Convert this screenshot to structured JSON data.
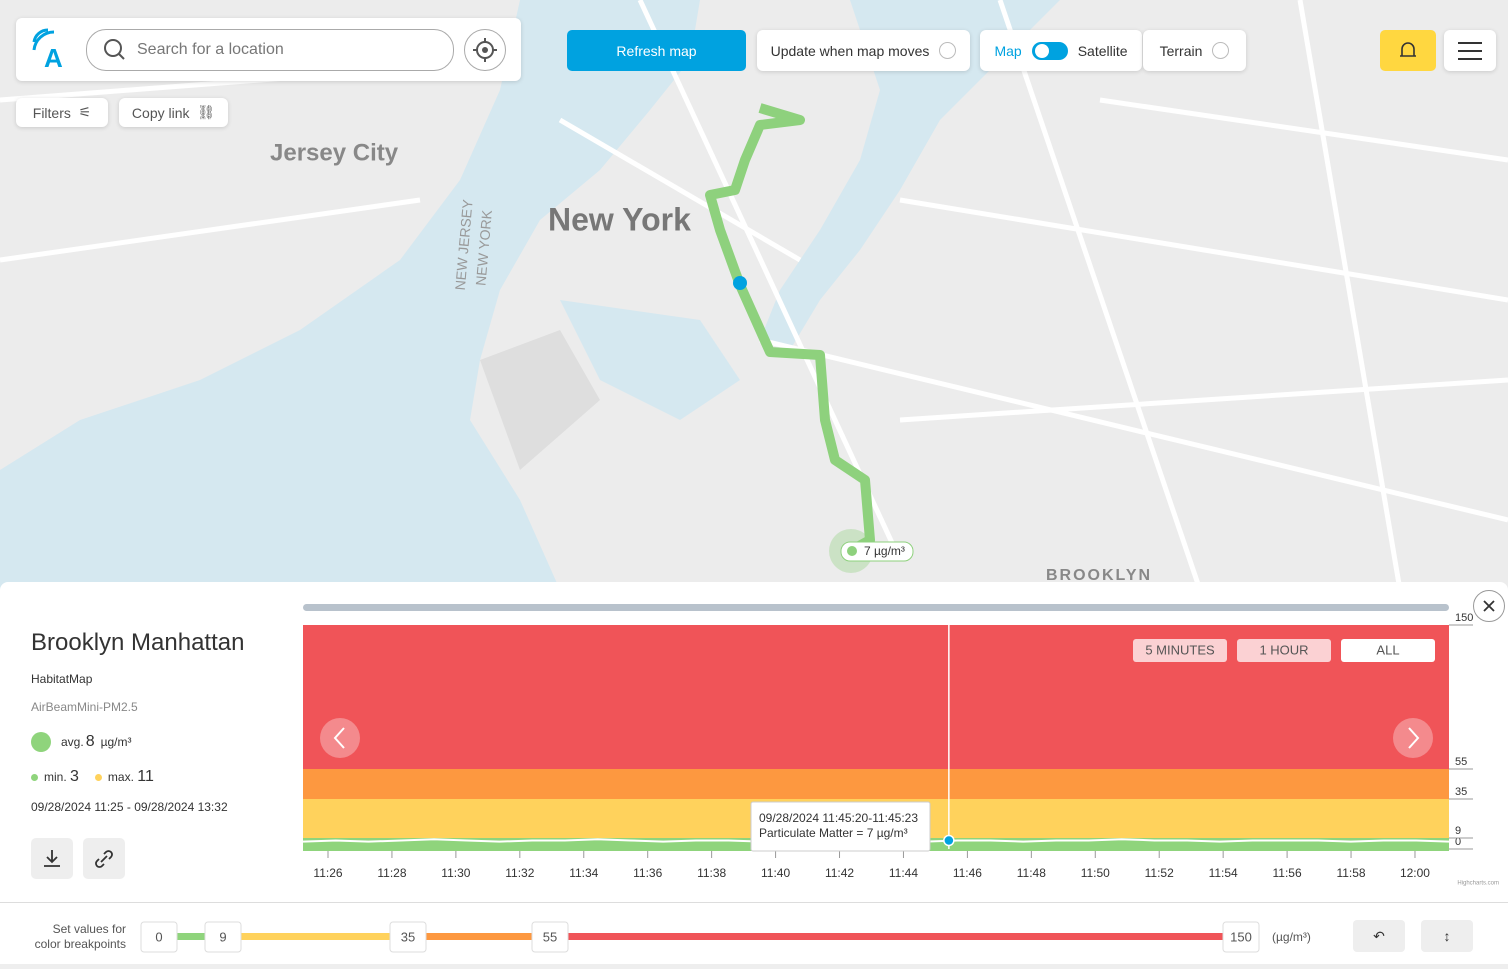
{
  "header": {
    "search_placeholder": "Search for a location",
    "refresh": "Refresh map",
    "update": "Update when map moves",
    "map": "Map",
    "satellite": "Satellite",
    "terrain": "Terrain"
  },
  "tools": {
    "filters": "Filters",
    "copy_link": "Copy link"
  },
  "map": {
    "labels": [
      "Jersey City",
      "New York",
      "NEW JERSEY",
      "NEW YORK",
      "BROOKLYN"
    ],
    "marker": "7 µg/m³"
  },
  "session": {
    "title": "Brooklyn Manhattan",
    "owner": "HabitatMap",
    "sensor": "AirBeamMini-PM2.5",
    "avg_label": "avg.",
    "avg": 8,
    "unit": "µg/m³",
    "min_label": "min.",
    "min": 3,
    "max_label": "max.",
    "max": 11,
    "dates": "09/28/2024 11:25 - 09/28/2024 13:32"
  },
  "chart_data": {
    "type": "line",
    "ranges": [
      "5 MINUTES",
      "1 HOUR",
      "ALL"
    ],
    "ylim": [
      0,
      150
    ],
    "yticks": [
      0,
      9,
      35,
      55,
      150
    ],
    "band_colors": [
      "#8fd47c",
      "#ffd25c",
      "#fd9840",
      "#f05458"
    ],
    "color": "#ffffff",
    "xticks": [
      "11:26",
      "11:28",
      "11:30",
      "11:32",
      "11:34",
      "11:36",
      "11:38",
      "11:40",
      "11:42",
      "11:44",
      "11:46",
      "11:48",
      "11:50",
      "11:52",
      "11:54",
      "11:56",
      "11:58",
      "12:00"
    ],
    "series": [
      {
        "name": "Particulate Matter",
        "values": [
          6,
          7,
          6,
          7,
          8,
          7,
          6,
          7,
          7,
          8,
          7,
          6,
          7,
          7,
          6,
          7,
          8,
          7,
          7,
          6,
          7,
          7,
          6,
          7,
          7,
          8,
          7,
          7,
          6,
          7,
          7,
          7,
          6,
          7,
          7,
          6
        ]
      }
    ],
    "tooltip": [
      "09/28/2024 11:45:20-11:45:23",
      "Particulate Matter = 7 µg/m³"
    ],
    "credit": "Highcharts.com"
  },
  "thresholds": {
    "label": [
      "Set values for",
      "color breakpoints"
    ],
    "values": [
      0,
      9,
      35,
      55,
      150
    ],
    "unit": "(µg/m³)"
  }
}
